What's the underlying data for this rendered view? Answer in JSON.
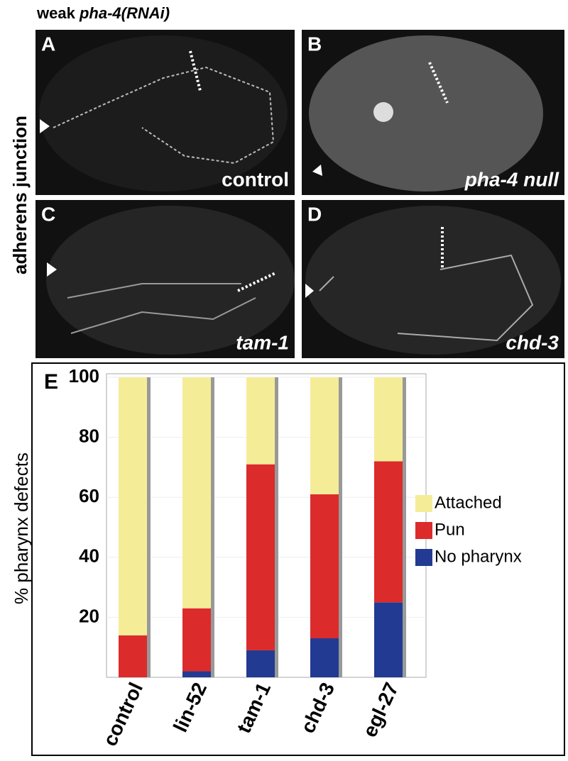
{
  "header": {
    "prefix": "weak",
    "italic": "pha-4(RNAi)"
  },
  "side_label": "adherens junction",
  "panels": [
    {
      "letter": "A",
      "caption": "control"
    },
    {
      "letter": "B",
      "caption": "pha-4 null"
    },
    {
      "letter": "C",
      "caption": "tam-1"
    },
    {
      "letter": "D",
      "caption": "chd-3"
    }
  ],
  "chart_data": {
    "type": "stacked_bar",
    "panel_letter": "E",
    "y_label": "% pharynx defects",
    "categories": [
      "control",
      "lin-52",
      "tam-1",
      "chd-3",
      "egl-27"
    ],
    "series": [
      {
        "name": "Attached",
        "color": "#f5ec98",
        "values": [
          86,
          77,
          29,
          39,
          28
        ]
      },
      {
        "name": "Pun",
        "color": "#dc2b2b",
        "values": [
          14,
          21,
          62,
          48,
          47
        ]
      },
      {
        "name": "No pharynx",
        "color": "#233a92",
        "values": [
          0,
          2,
          9,
          13,
          25
        ]
      }
    ],
    "ylim": [
      0,
      100
    ],
    "yticks": [
      20,
      40,
      60,
      80,
      100
    ],
    "grid": true,
    "legend": "right"
  }
}
